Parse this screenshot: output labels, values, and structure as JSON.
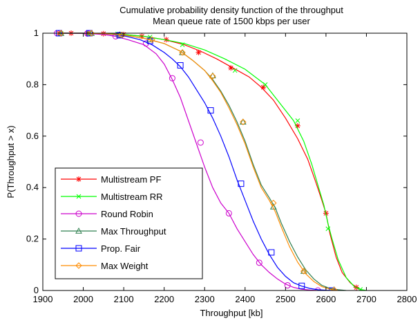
{
  "chart_data": {
    "type": "line",
    "title": "Cumulative probability density function of the throughput",
    "subtitle": "Mean queue rate of 1500 kbps per user",
    "xlabel": "Throughput [kb]",
    "ylabel": "P(Throughput > x)",
    "xlim": [
      1900,
      2800
    ],
    "ylim": [
      0,
      1
    ],
    "xticks": [
      1900,
      2000,
      2100,
      2200,
      2300,
      2400,
      2500,
      2600,
      2700,
      2800
    ],
    "yticks": [
      0,
      0.2,
      0.4,
      0.6,
      0.8,
      1
    ],
    "xtick_labels": [
      "1900",
      "2000",
      "2100",
      "2200",
      "2300",
      "2400",
      "2500",
      "2600",
      "2700",
      "2800"
    ],
    "ytick_labels": [
      "0",
      "0.2",
      "0.4",
      "0.6",
      "0.8",
      "1"
    ],
    "grid": false,
    "legend_position": "bottom-left",
    "series": [
      {
        "name": "Multistream PF",
        "color": "#ff0000",
        "marker": "asterisk",
        "x": [
          1940,
          1970,
          2000,
          2050,
          2100,
          2150,
          2200,
          2250,
          2290,
          2330,
          2370,
          2410,
          2440,
          2470,
          2500,
          2530,
          2555,
          2575,
          2590,
          2600,
          2610,
          2625,
          2640,
          2660,
          2675,
          2690
        ],
        "y": [
          1.0,
          1.0,
          1.0,
          0.998,
          0.995,
          0.988,
          0.975,
          0.955,
          0.93,
          0.9,
          0.865,
          0.83,
          0.79,
          0.74,
          0.67,
          0.59,
          0.51,
          0.42,
          0.35,
          0.3,
          0.22,
          0.13,
          0.07,
          0.03,
          0.012,
          0.0
        ],
        "marker_x": [
          1940,
          1970,
          2010,
          2050,
          2100,
          2145,
          2205,
          2285,
          2365,
          2445,
          2530,
          2600,
          2675
        ],
        "marker_y": [
          1.0,
          1.0,
          1.0,
          0.998,
          0.995,
          0.988,
          0.975,
          0.925,
          0.865,
          0.79,
          0.64,
          0.3,
          0.012
        ]
      },
      {
        "name": "Multistream RR",
        "color": "#00ff00",
        "marker": "x",
        "x": [
          1940,
          1970,
          2000,
          2050,
          2100,
          2150,
          2200,
          2250,
          2300,
          2350,
          2400,
          2450,
          2490,
          2520,
          2545,
          2565,
          2580,
          2595,
          2605,
          2615,
          2630,
          2650,
          2670,
          2685,
          2700
        ],
        "y": [
          1.0,
          1.0,
          1.0,
          0.998,
          0.995,
          0.988,
          0.975,
          0.96,
          0.935,
          0.9,
          0.86,
          0.8,
          0.72,
          0.66,
          0.58,
          0.49,
          0.41,
          0.33,
          0.26,
          0.2,
          0.12,
          0.05,
          0.015,
          0.004,
          0.0
        ],
        "marker_x": [
          1945,
          2015,
          2085,
          2165,
          2245,
          2375,
          2450,
          2530,
          2605,
          2685
        ],
        "marker_y": [
          1.0,
          1.0,
          0.997,
          0.985,
          0.955,
          0.855,
          0.8,
          0.66,
          0.24,
          0.004
        ]
      },
      {
        "name": "Round Robin",
        "color": "#cc00cc",
        "marker": "circle",
        "x": [
          1935,
          1970,
          2010,
          2050,
          2080,
          2110,
          2150,
          2180,
          2200,
          2220,
          2240,
          2260,
          2280,
          2300,
          2320,
          2340,
          2360,
          2380,
          2400,
          2420,
          2440,
          2460,
          2480,
          2500,
          2520,
          2540,
          2560,
          2580
        ],
        "y": [
          1.0,
          1.0,
          0.999,
          0.995,
          0.988,
          0.975,
          0.955,
          0.92,
          0.88,
          0.82,
          0.75,
          0.66,
          0.57,
          0.48,
          0.4,
          0.34,
          0.3,
          0.24,
          0.19,
          0.14,
          0.1,
          0.07,
          0.045,
          0.025,
          0.012,
          0.005,
          0.002,
          0.0
        ],
        "marker_x": [
          1935,
          2010,
          2080,
          2155,
          2220,
          2290,
          2360,
          2435,
          2505,
          2580
        ],
        "marker_y": [
          1.0,
          0.999,
          0.988,
          0.96,
          0.825,
          0.575,
          0.3,
          0.108,
          0.02,
          0.0
        ]
      },
      {
        "name": "Max Throughput",
        "color": "#2f7f4f",
        "marker": "triangle",
        "x": [
          1945,
          2000,
          2050,
          2100,
          2150,
          2200,
          2240,
          2270,
          2300,
          2320,
          2340,
          2360,
          2380,
          2400,
          2420,
          2440,
          2460,
          2475,
          2490,
          2510,
          2530,
          2550,
          2570,
          2590,
          2610,
          2630,
          2650
        ],
        "y": [
          1.0,
          1.0,
          0.998,
          0.993,
          0.98,
          0.96,
          0.93,
          0.895,
          0.855,
          0.82,
          0.775,
          0.72,
          0.655,
          0.58,
          0.49,
          0.41,
          0.36,
          0.32,
          0.26,
          0.19,
          0.13,
          0.08,
          0.045,
          0.02,
          0.008,
          0.003,
          0.0
        ],
        "marker_x": [
          1945,
          2020,
          2090,
          2165,
          2245,
          2320,
          2395,
          2470,
          2545,
          2620
        ],
        "marker_y": [
          1.0,
          1.0,
          0.994,
          0.975,
          0.925,
          0.835,
          0.655,
          0.325,
          0.075,
          0.003
        ]
      },
      {
        "name": "Prop. Fair",
        "color": "#0000ff",
        "marker": "square",
        "x": [
          1940,
          2000,
          2050,
          2100,
          2140,
          2170,
          2200,
          2220,
          2240,
          2260,
          2280,
          2300,
          2320,
          2340,
          2360,
          2380,
          2400,
          2420,
          2440,
          2460,
          2480,
          2500,
          2520,
          2540,
          2560,
          2580,
          2600,
          2620
        ],
        "y": [
          1.0,
          1.0,
          0.998,
          0.99,
          0.975,
          0.955,
          0.925,
          0.9,
          0.87,
          0.83,
          0.78,
          0.73,
          0.67,
          0.6,
          0.52,
          0.43,
          0.35,
          0.27,
          0.2,
          0.14,
          0.09,
          0.055,
          0.03,
          0.017,
          0.008,
          0.003,
          0.001,
          0.0
        ],
        "marker_x": [
          1940,
          2015,
          2090,
          2165,
          2240,
          2315,
          2390,
          2465,
          2540,
          2615
        ],
        "marker_y": [
          1.0,
          1.0,
          0.992,
          0.97,
          0.875,
          0.7,
          0.415,
          0.148,
          0.018,
          0.0
        ]
      },
      {
        "name": "Max Weight",
        "color": "#ff8c00",
        "marker": "diamond",
        "x": [
          1945,
          2000,
          2050,
          2100,
          2150,
          2200,
          2240,
          2270,
          2300,
          2320,
          2340,
          2360,
          2380,
          2400,
          2420,
          2440,
          2460,
          2475,
          2490,
          2510,
          2530,
          2550,
          2570,
          2590,
          2610,
          2630
        ],
        "y": [
          1.0,
          1.0,
          0.998,
          0.993,
          0.98,
          0.96,
          0.93,
          0.895,
          0.855,
          0.815,
          0.77,
          0.71,
          0.645,
          0.57,
          0.48,
          0.4,
          0.35,
          0.305,
          0.245,
          0.17,
          0.11,
          0.065,
          0.035,
          0.015,
          0.005,
          0.0
        ],
        "marker_x": [
          1945,
          2020,
          2095,
          2170,
          2245,
          2320,
          2395,
          2470,
          2545,
          2620
        ],
        "marker_y": [
          1.0,
          1.0,
          0.993,
          0.975,
          0.925,
          0.833,
          0.655,
          0.34,
          0.075,
          0.002
        ]
      }
    ]
  }
}
